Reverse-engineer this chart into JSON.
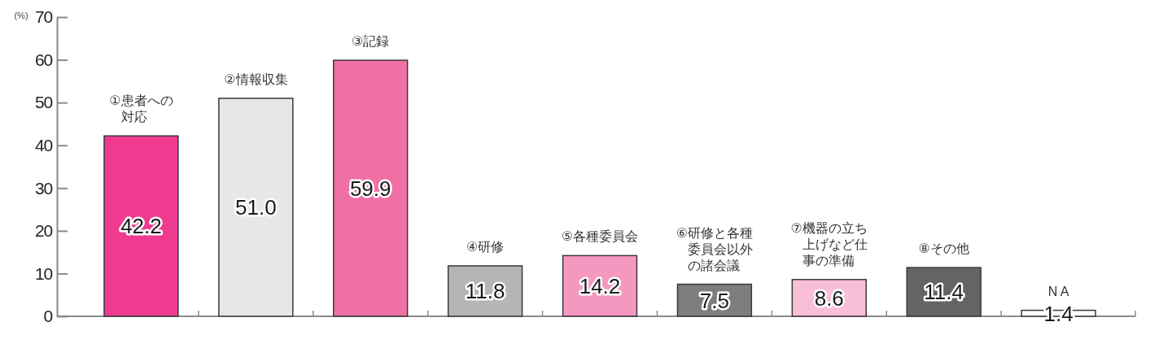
{
  "chart_data": {
    "type": "bar",
    "ylabel": "(%)",
    "categories": [
      "①患者への対応",
      "②情報収集",
      "③記録",
      "④研修",
      "⑤各種委員会",
      "⑥研修と各種委員会以外の諸会議",
      "⑦機器の立ち上げなど仕事の準備",
      "⑧その他",
      "N A"
    ],
    "values": [
      42.2,
      51.0,
      59.9,
      11.8,
      14.2,
      7.5,
      8.6,
      11.4,
      1.4
    ],
    "colors": [
      "#ee3b8f",
      "#e6e7e8",
      "#f070a5",
      "#b4b5b7",
      "#f498c0",
      "#7e7e80",
      "#f9bed8",
      "#646466",
      "#ffffff"
    ],
    "value_labels": [
      "42.2",
      "51.0",
      "59.9",
      "11.8",
      "14.2",
      "7.5",
      "8.6",
      "11.4",
      "1.4"
    ],
    "ylim": [
      0,
      70
    ],
    "yticks": [
      0,
      10,
      20,
      30,
      40,
      50,
      60,
      70
    ]
  }
}
